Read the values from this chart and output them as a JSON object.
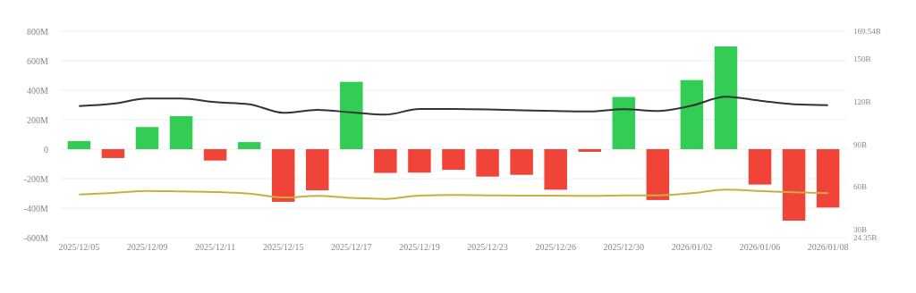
{
  "chart_data": {
    "type": "bar",
    "categories": [
      "2025/12/05",
      null,
      "2025/12/09",
      null,
      "2025/12/11",
      null,
      "2025/12/15",
      null,
      "2025/12/17",
      null,
      "2025/12/19",
      null,
      "2025/12/23",
      null,
      "2025/12/26",
      null,
      "2025/12/30",
      null,
      "2026/01/02",
      null,
      "2026/01/06",
      null,
      "2026/01/08"
    ],
    "series": [
      {
        "colors": [
          "#33cc55",
          "#f04438",
          "#33cc55",
          "#33cc55",
          "#f04438",
          "#33cc55",
          "#f04438",
          "#f04438",
          "#33cc55",
          "#f04438",
          "#f04438",
          "#f04438",
          "#f04438",
          "#f04438",
          "#f04438",
          "#f04438",
          "#33cc55",
          "#f04438",
          "#33cc55",
          "#33cc55",
          "#f04438",
          "#f04438",
          "#f04438"
        ],
        "values": [
          55,
          -60,
          150,
          224,
          -77,
          48,
          -357,
          -279,
          457,
          -161,
          -159,
          -140,
          -186,
          -174,
          -275,
          -18,
          354,
          -345,
          469,
          697,
          -240,
          -485,
          -396
        ]
      },
      {
        "type": "line",
        "axis": "y2",
        "color": "#333333",
        "values": [
          116.9,
          118.6,
          122.2,
          122.2,
          119.7,
          118.2,
          112.2,
          114.2,
          112.5,
          110.9,
          114.9,
          114.9,
          114.6,
          113.9,
          113.5,
          113.1,
          114.7,
          113.4,
          117.2,
          123.5,
          120.7,
          118.2,
          117.6
        ]
      },
      {
        "type": "line",
        "axis": "y2",
        "color": "#c8b040",
        "values": [
          54.7,
          55.8,
          57.2,
          56.8,
          56.4,
          55.3,
          52.6,
          53.7,
          52.3,
          51.6,
          53.9,
          54.3,
          54.1,
          53.9,
          53.9,
          53.7,
          54.1,
          54.1,
          55.6,
          58.1,
          57.2,
          56.2,
          55.6
        ]
      }
    ],
    "ylim": [
      -600,
      800
    ],
    "yticks": [
      {
        "value": -600,
        "label": "-600M"
      },
      {
        "value": -400,
        "label": "-400M"
      },
      {
        "value": -200,
        "label": "-200M"
      },
      0,
      {
        "value": 200,
        "label": "200M"
      },
      {
        "value": 400,
        "label": "400M"
      },
      {
        "value": 600,
        "label": "600M"
      },
      {
        "value": 800,
        "label": "800M"
      }
    ],
    "y2lim": [
      24.35,
      169.54
    ],
    "y2ticks": [
      {
        "value": 24.35,
        "label": "24.35B"
      },
      {
        "value": 30,
        "label": "30B"
      },
      {
        "value": 60,
        "label": "60B"
      },
      {
        "value": 90,
        "label": "90B"
      },
      {
        "value": 120,
        "label": "120B"
      },
      {
        "value": 150,
        "label": "150B"
      },
      {
        "value": 169.54,
        "label": "169.54B"
      }
    ],
    "grid": "y",
    "marker": "none",
    "line_style": "solid"
  }
}
